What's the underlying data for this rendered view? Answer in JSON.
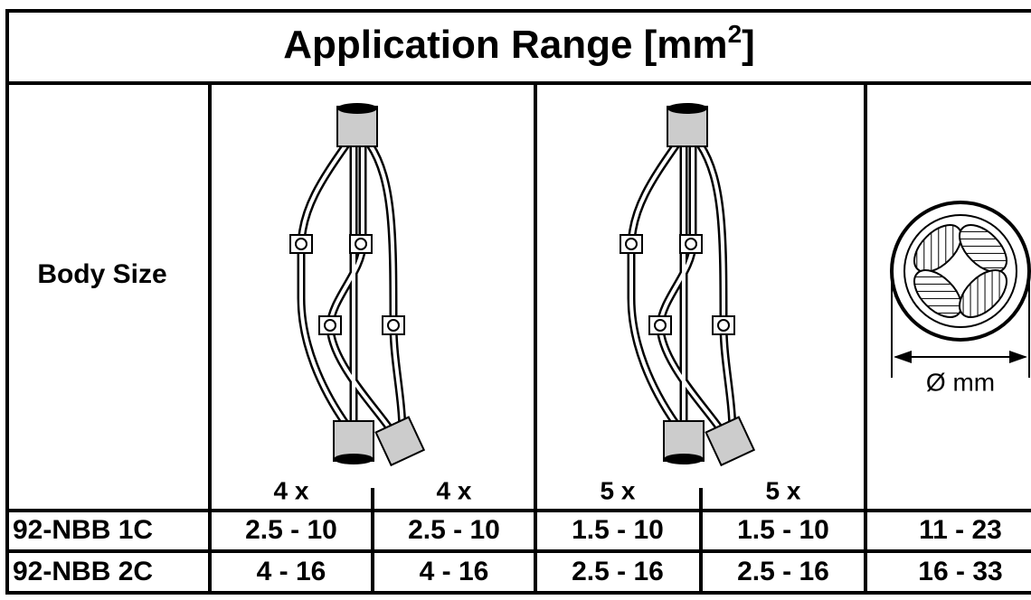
{
  "title": {
    "text": "Application Range [mm",
    "superscript": "2",
    "end": "]"
  },
  "header": {
    "body_size": "Body Size",
    "splice_labels": [
      "4 x",
      "4 x",
      "5 x",
      "5 x"
    ],
    "diameter_label": "Ø mm"
  },
  "rows": [
    {
      "body": "92-NBB 1C",
      "values": [
        "2.5 - 10",
        "2.5 - 10",
        "1.5 - 10",
        "1.5 - 10",
        "11 - 23"
      ]
    },
    {
      "body": "92-NBB 2C",
      "values": [
        "4 - 16",
        "4 - 16",
        "2.5 - 16",
        "2.5 - 16",
        "16 - 33"
      ]
    }
  ]
}
